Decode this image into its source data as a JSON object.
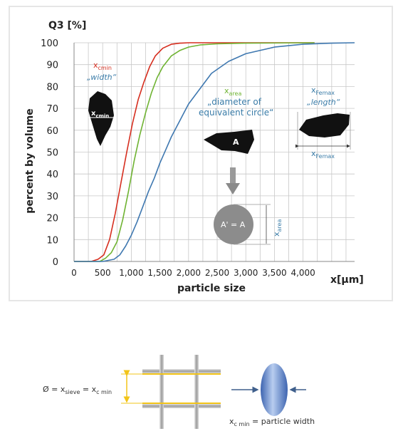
{
  "colors": {
    "red": "#d62e1f",
    "green": "#6fb332",
    "blue": "#3f78b0",
    "grid": "#c8c8c8",
    "shape": "#111111",
    "circle": "#8c8c8c",
    "arrow": "#8a8a8a",
    "sieve_highlight": "#f2c418"
  },
  "chart_data": {
    "type": "line",
    "y_title": "Q3 [%]",
    "ylabel": "percent by volume",
    "xlabel": "particle size",
    "x_unit_label": "x[µm]",
    "xlim": [
      0,
      4900
    ],
    "ylim": [
      0,
      100
    ],
    "x_ticks": [
      0,
      500,
      1000,
      1500,
      2000,
      2500,
      3000,
      3500,
      4000
    ],
    "x_tick_labels": [
      "0",
      "500",
      "1,000",
      "1,500",
      "2,000",
      "2,500",
      "3,000",
      "3,500",
      "4,000"
    ],
    "y_ticks": [
      0,
      10,
      20,
      30,
      40,
      50,
      60,
      70,
      80,
      90,
      100
    ],
    "grid": true,
    "series": [
      {
        "color": "red",
        "x": [
          0,
          300,
          420,
          520,
          620,
          720,
          820,
          920,
          1020,
          1120,
          1220,
          1320,
          1420,
          1550,
          1700,
          1850,
          2000,
          2300,
          4200
        ],
        "y": [
          0,
          0,
          1,
          3,
          10,
          22,
          36,
          50,
          63,
          74,
          82,
          89,
          94,
          97.5,
          99.3,
          99.8,
          100,
          100,
          100
        ]
      },
      {
        "color": "green",
        "x": [
          0,
          450,
          550,
          650,
          750,
          850,
          950,
          1050,
          1150,
          1250,
          1350,
          1450,
          1550,
          1700,
          1850,
          2000,
          2200,
          2500,
          3000,
          4200
        ],
        "y": [
          0,
          0,
          1.5,
          4,
          9,
          19,
          32,
          46,
          58,
          68,
          77,
          84,
          89,
          94,
          96.5,
          98,
          99,
          99.5,
          99.8,
          100
        ]
      },
      {
        "color": "blue",
        "x": [
          0,
          500,
          700,
          800,
          900,
          1000,
          1100,
          1200,
          1300,
          1400,
          1500,
          1600,
          1700,
          1800,
          1900,
          2000,
          2200,
          2400,
          2700,
          3000,
          3500,
          4000,
          4500,
          4900
        ],
        "y": [
          0,
          0,
          1,
          3,
          7,
          12,
          18,
          25,
          32,
          38,
          45,
          51,
          57,
          62,
          67,
          72,
          79,
          86,
          91.5,
          95,
          98,
          99.3,
          99.8,
          100
        ]
      }
    ],
    "annotations": {
      "xcmin": {
        "symbol": "x",
        "sub": "cmin",
        "desc": "„width“"
      },
      "xarea": {
        "symbol": "x",
        "sub": "area",
        "desc_line1": "„diameter of",
        "desc_line2": "equivalent circle“"
      },
      "xfemax": {
        "symbol": "x",
        "sub": "Femax",
        "desc": "„length“"
      },
      "shape_a_label": "A",
      "circle_label": "A' = A"
    }
  },
  "sieve_diagram": {
    "formula": {
      "phi": "Ø = x",
      "sieve_sub": "sieve",
      "eq": " = x",
      "cmin_sub": "c min"
    },
    "width_label": {
      "symbol": "x",
      "sub": "c min",
      "rest": " = particle width"
    }
  }
}
